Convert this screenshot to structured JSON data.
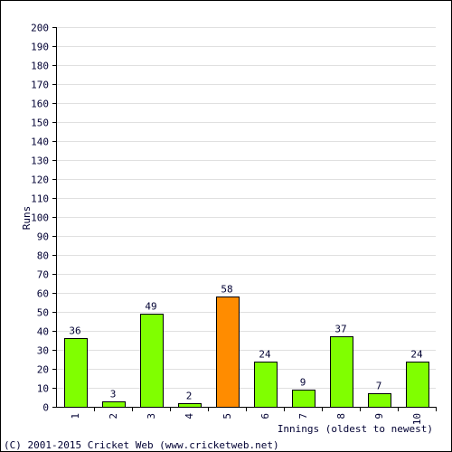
{
  "chart_data": {
    "type": "bar",
    "categories": [
      "1",
      "2",
      "3",
      "4",
      "5",
      "6",
      "7",
      "8",
      "9",
      "10"
    ],
    "values": [
      36,
      3,
      49,
      2,
      58,
      24,
      9,
      37,
      7,
      24
    ],
    "bar_colors": [
      "#80ff00",
      "#80ff00",
      "#80ff00",
      "#80ff00",
      "#ff8c00",
      "#80ff00",
      "#80ff00",
      "#80ff00",
      "#80ff00",
      "#80ff00"
    ],
    "xlabel": "Innings (oldest to newest)",
    "ylabel": "Runs",
    "ylim": [
      0,
      200
    ],
    "ytick_step": 10,
    "grid": true,
    "data_labels": true
  },
  "footer": {
    "copyright": "(C) 2001-2015 Cricket Web (www.cricketweb.net)"
  },
  "colors": {
    "bar_default": "#80ff00",
    "bar_highlight": "#ff8c00",
    "text": "#000033",
    "grid": "#e0e0e0"
  }
}
